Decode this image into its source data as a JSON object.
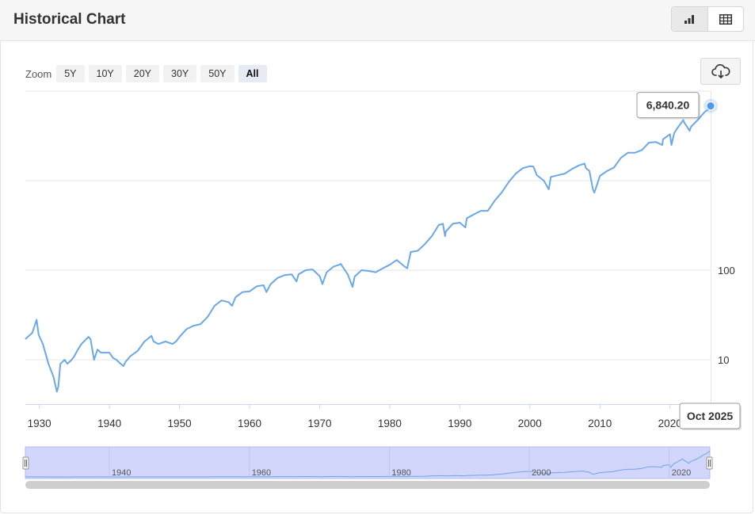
{
  "header": {
    "title": "Historical Chart"
  },
  "view_toggle": {
    "chart_icon": "bar-chart-icon",
    "table_icon": "table-icon"
  },
  "zoom": {
    "label": "Zoom",
    "options": [
      "5Y",
      "10Y",
      "20Y",
      "30Y",
      "50Y",
      "All"
    ],
    "selected": "All"
  },
  "export": {
    "icon": "cloud-download-icon"
  },
  "colors": {
    "line": "#6aa8e8",
    "navigator_fill": "#d2d6fa",
    "accent": "#4d97f2"
  },
  "chart_data": {
    "type": "line",
    "title": "",
    "xlabel": "",
    "ylabel": "",
    "y_scale": "log",
    "ylim": [
      3.2,
      10000
    ],
    "xlim": [
      1928,
      2025.8
    ],
    "x_ticks": [
      1930,
      1940,
      1950,
      1960,
      1970,
      1980,
      1990,
      2000,
      2010,
      2020
    ],
    "y_ticks": [
      10,
      100
    ],
    "grid": true,
    "tooltip": {
      "value": "6,840.20",
      "date": "Oct 2025"
    },
    "series": [
      {
        "values_x": [
          1928.0,
          1929.0,
          1929.6,
          1929.9,
          1930.5,
          1931.3,
          1932.0,
          1932.5,
          1932.7,
          1933.0,
          1933.6,
          1934.0,
          1934.6,
          1935.0,
          1935.5,
          1936.0,
          1937.0,
          1937.3,
          1937.8,
          1938.3,
          1938.8,
          1939.5,
          1940.0,
          1940.5,
          1941.0,
          1941.6,
          1942.0,
          1942.3,
          1943.0,
          1944.0,
          1945.0,
          1946.0,
          1946.3,
          1947.0,
          1948.0,
          1949.0,
          1949.5,
          1950.0,
          1951.0,
          1952.0,
          1953.0,
          1954.0,
          1955.0,
          1956.0,
          1957.0,
          1957.5,
          1958.0,
          1959.0,
          1960.0,
          1961.0,
          1962.0,
          1962.4,
          1963.0,
          1964.0,
          1965.0,
          1966.0,
          1966.7,
          1967.0,
          1968.0,
          1969.0,
          1970.0,
          1970.4,
          1971.0,
          1972.0,
          1972.8,
          1973.0,
          1974.0,
          1974.7,
          1975.0,
          1976.0,
          1977.0,
          1978.0,
          1979.0,
          1980.0,
          1981.0,
          1982.0,
          1982.5,
          1983.0,
          1984.0,
          1985.0,
          1986.0,
          1987.0,
          1987.6,
          1987.9,
          1988.0,
          1989.0,
          1990.0,
          1990.8,
          1991.0,
          1992.0,
          1993.0,
          1994.0,
          1995.0,
          1996.0,
          1997.0,
          1998.0,
          1999.0,
          2000.0,
          2000.5,
          2001.0,
          2002.0,
          2002.7,
          2003.0,
          2004.0,
          2005.0,
          2006.0,
          2007.0,
          2007.8,
          2008.0,
          2008.5,
          2009.0,
          2009.2,
          2010.0,
          2011.0,
          2012.0,
          2013.0,
          2014.0,
          2015.0,
          2016.0,
          2017.0,
          2018.0,
          2018.9,
          2019.0,
          2020.0,
          2020.2,
          2020.6,
          2021.0,
          2021.9,
          2022.0,
          2022.8,
          2023.0,
          2024.0,
          2025.0,
          2025.3,
          2025.8
        ],
        "values_y": [
          17,
          20,
          28,
          19,
          15,
          9,
          6.5,
          4.4,
          5,
          9,
          10,
          9,
          10,
          11,
          13,
          15,
          18,
          17,
          10,
          13,
          12,
          12,
          12,
          10.5,
          10,
          9,
          8.5,
          9.5,
          11,
          12.5,
          16,
          18.5,
          16,
          15,
          16,
          15,
          16,
          18,
          22,
          24,
          25,
          30,
          40,
          46,
          44,
          40,
          50,
          57,
          58,
          66,
          68,
          57,
          70,
          82,
          88,
          90,
          75,
          90,
          100,
          102,
          86,
          70,
          95,
          110,
          115,
          118,
          90,
          65,
          85,
          100,
          98,
          95,
          105,
          115,
          130,
          112,
          105,
          160,
          165,
          195,
          240,
          320,
          330,
          240,
          270,
          330,
          340,
          300,
          380,
          420,
          460,
          460,
          600,
          740,
          970,
          1200,
          1380,
          1450,
          1440,
          1150,
          1000,
          800,
          1100,
          1150,
          1200,
          1350,
          1480,
          1550,
          1380,
          1280,
          800,
          735,
          1130,
          1280,
          1400,
          1800,
          2050,
          2050,
          2200,
          2660,
          2700,
          2500,
          2900,
          3300,
          2500,
          3400,
          3800,
          4760,
          4500,
          3600,
          4000,
          4800,
          5900,
          6100,
          6840.2
        ]
      }
    ]
  }
}
